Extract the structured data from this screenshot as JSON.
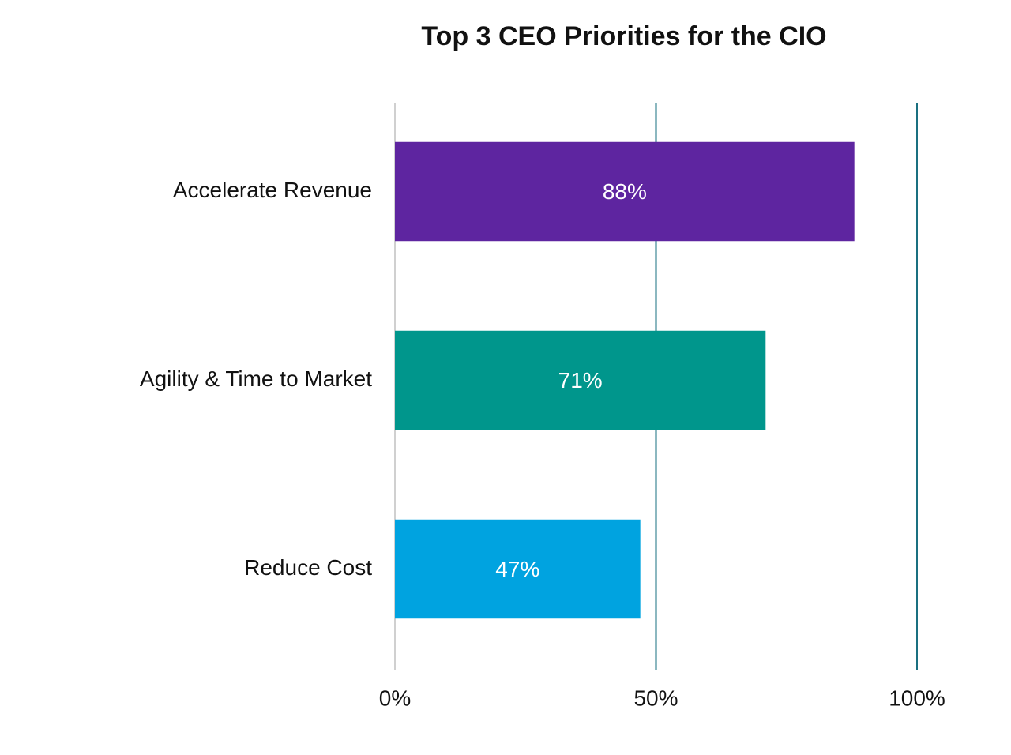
{
  "chart_data": {
    "type": "barh",
    "title": "Top 3 CEO Priorities for the CIO",
    "categories": [
      "Accelerate Revenue",
      "Agility & Time to Market",
      "Reduce Cost"
    ],
    "values": [
      88,
      71,
      47
    ],
    "value_labels": [
      "88%",
      "71%",
      "47%"
    ],
    "colors": [
      "#5e25a0",
      "#00968c",
      "#00a3e0"
    ],
    "xlim": [
      0,
      100
    ],
    "xticks": [
      {
        "value": 0,
        "label": "0%"
      },
      {
        "value": 50,
        "label": "50%"
      },
      {
        "value": 100,
        "label": "100%"
      }
    ],
    "grid": true,
    "grid_color": "#1a7080"
  }
}
